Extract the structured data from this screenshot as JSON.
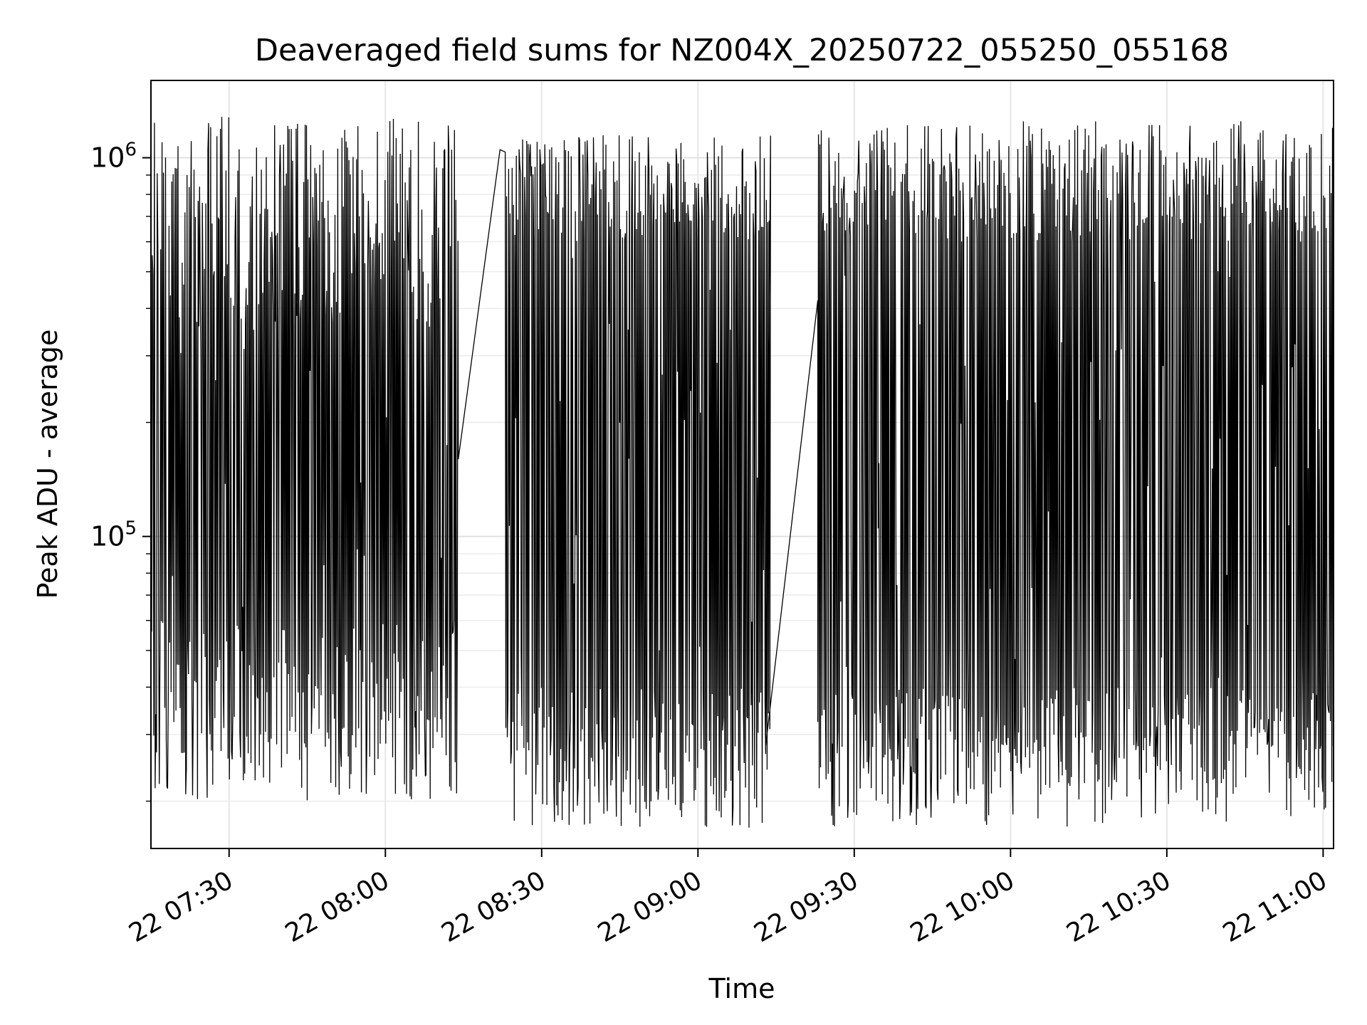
{
  "chart_data": {
    "type": "line",
    "title": "Deaveraged field sums for NZ004X_20250722_055250_055168",
    "xlabel": "Time",
    "ylabel": "Peak ADU - average",
    "yscale": "log",
    "xlim": [
      "2025-07-22T07:15",
      "2025-07-22T11:02"
    ],
    "ylim": [
      15000,
      1600000
    ],
    "grid": true,
    "line_color": "#000000",
    "xticks": [
      {
        "t": "2025-07-22T07:30",
        "label": "22 07:30"
      },
      {
        "t": "2025-07-22T08:00",
        "label": "22 08:00"
      },
      {
        "t": "2025-07-22T08:30",
        "label": "22 08:30"
      },
      {
        "t": "2025-07-22T09:00",
        "label": "22 09:00"
      },
      {
        "t": "2025-07-22T09:30",
        "label": "22 09:30"
      },
      {
        "t": "2025-07-22T10:00",
        "label": "22 10:00"
      },
      {
        "t": "2025-07-22T10:30",
        "label": "22 10:30"
      },
      {
        "t": "2025-07-22T11:00",
        "label": "22 11:00"
      }
    ],
    "yticks": [
      {
        "v": 100000,
        "base": "10",
        "exp": "5"
      },
      {
        "v": 1000000,
        "base": "10",
        "exp": "6"
      }
    ],
    "segments": [
      {
        "start": "2025-07-22T07:15",
        "end": "2025-07-22T08:14",
        "low": [
          20000,
          60000
        ],
        "high": [
          350000,
          1300000
        ]
      },
      {
        "start": "2025-07-22T08:23",
        "end": "2025-07-22T09:14",
        "low": [
          17000,
          40000
        ],
        "high": [
          600000,
          1150000
        ]
      },
      {
        "start": "2025-07-22T09:23",
        "end": "2025-07-22T11:02",
        "low": [
          17000,
          40000
        ],
        "high": [
          600000,
          1250000
        ]
      }
    ],
    "bridges": [
      {
        "x": [
          "2025-07-22T08:14",
          "2025-07-22T08:22"
        ],
        "y": [
          160000,
          1050000
        ]
      },
      {
        "x": [
          "2025-07-22T09:13",
          "2025-07-22T09:23"
        ],
        "y": [
          28000,
          420000
        ]
      }
    ]
  }
}
